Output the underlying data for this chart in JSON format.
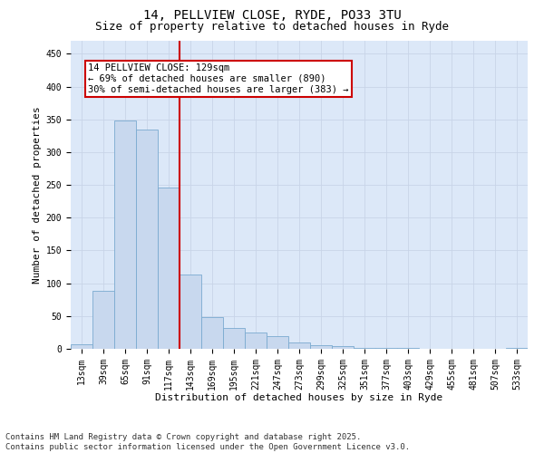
{
  "title_line1": "14, PELLVIEW CLOSE, RYDE, PO33 3TU",
  "title_line2": "Size of property relative to detached houses in Ryde",
  "xlabel": "Distribution of detached houses by size in Ryde",
  "ylabel": "Number of detached properties",
  "categories": [
    "13sqm",
    "39sqm",
    "65sqm",
    "91sqm",
    "117sqm",
    "143sqm",
    "169sqm",
    "195sqm",
    "221sqm",
    "247sqm",
    "273sqm",
    "299sqm",
    "325sqm",
    "351sqm",
    "377sqm",
    "403sqm",
    "429sqm",
    "455sqm",
    "481sqm",
    "507sqm",
    "533sqm"
  ],
  "values": [
    7,
    88,
    348,
    335,
    246,
    113,
    48,
    32,
    25,
    20,
    10,
    5,
    4,
    2,
    1,
    1,
    0,
    0,
    0,
    0,
    1
  ],
  "bar_color": "#c8d8ee",
  "bar_edge_color": "#7aaad0",
  "vline_x": 4.5,
  "vline_color": "#cc0000",
  "annotation_text": "14 PELLVIEW CLOSE: 129sqm\n← 69% of detached houses are smaller (890)\n30% of semi-detached houses are larger (383) →",
  "annotation_box_color": "#ffffff",
  "annotation_box_edge": "#cc0000",
  "ylim": [
    0,
    470
  ],
  "yticks": [
    0,
    50,
    100,
    150,
    200,
    250,
    300,
    350,
    400,
    450
  ],
  "grid_color": "#c8d4e8",
  "bg_color": "#dce8f8",
  "footer_line1": "Contains HM Land Registry data © Crown copyright and database right 2025.",
  "footer_line2": "Contains public sector information licensed under the Open Government Licence v3.0.",
  "title_fontsize": 10,
  "subtitle_fontsize": 9,
  "axis_label_fontsize": 8,
  "tick_fontsize": 7,
  "annotation_fontsize": 7.5,
  "footer_fontsize": 6.5
}
